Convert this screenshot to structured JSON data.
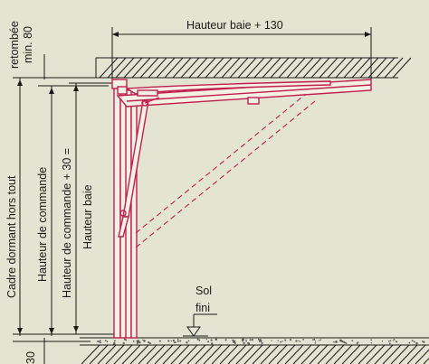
{
  "labels": {
    "top_dimension": "Hauteur baie  + 130",
    "retombee_line1": "retombée",
    "retombee_line2": "min. 80",
    "cadre": "Cadre dormant hors tout",
    "hauteur_commande": "Hauteur de commande",
    "hauteur_commande_30": "Hauteur de commande + 30 =",
    "hauteur_baie": "Hauteur baie",
    "sol_line1": "Sol",
    "sol_line2": "fini",
    "bottom_dim": "30"
  },
  "colors": {
    "background": "#e3e5d2",
    "door": "#c21e4f",
    "lines": "#1a1a1a"
  }
}
